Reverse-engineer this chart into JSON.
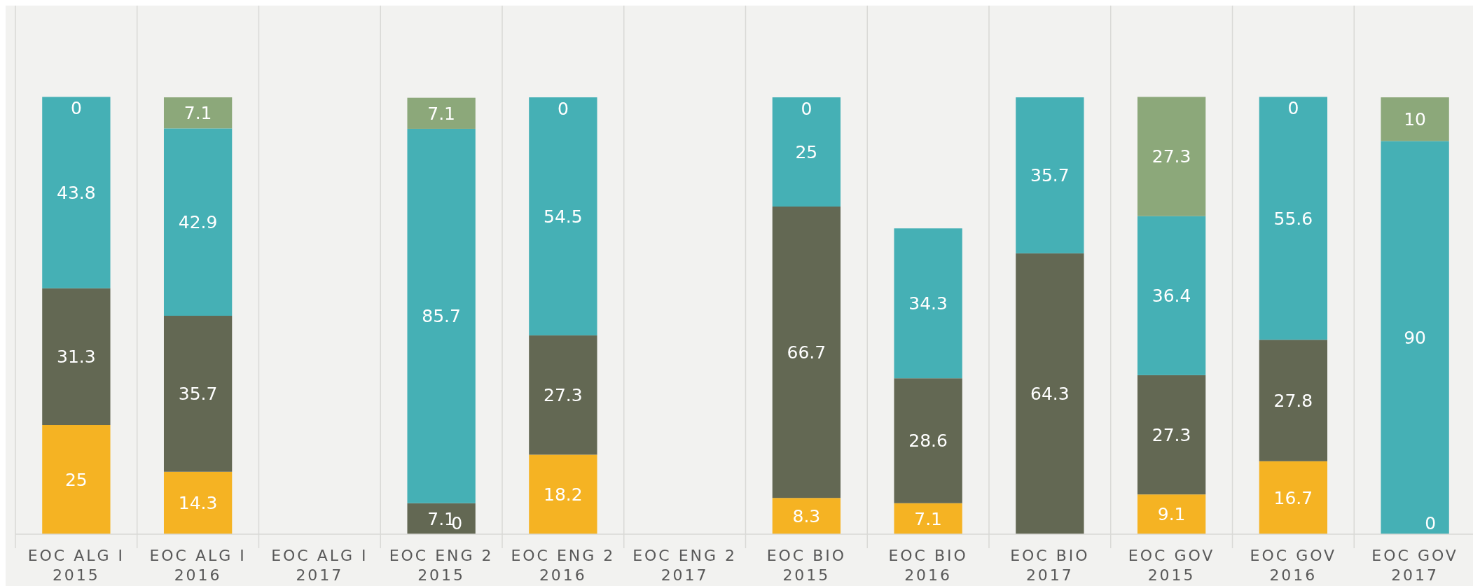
{
  "chart_data": {
    "type": "bar",
    "stacked": true,
    "data_labels": true,
    "grid": "x",
    "legend": false,
    "tick_labels": "x",
    "ylim": [
      0,
      121
    ],
    "annotations": [
      {
        "text": "0",
        "x": "EOC ENG 2 2015",
        "y": 0
      },
      {
        "text": "0",
        "x": "EOC GOV 2017",
        "y": 0
      }
    ],
    "categories": [
      "EOC ALG I 2015",
      "EOC ALG I 2016",
      "EOC ALG I 2017",
      "EOC ENG 2 2015",
      "EOC ENG 2 2016",
      "EOC ENG 2 2017",
      "EOC BIO 2015",
      "EOC BIO 2016",
      "EOC BIO 2017",
      "EOC GOV 2015",
      "EOC GOV 2016",
      "EOC GOV 2017"
    ],
    "series": [
      {
        "color": "#f5b323",
        "values": [
          25,
          14.3,
          null,
          null,
          18.2,
          null,
          8.3,
          7.1,
          null,
          9.1,
          16.7,
          null
        ]
      },
      {
        "color": "#636853",
        "values": [
          31.3,
          35.7,
          null,
          7.1,
          27.3,
          null,
          66.7,
          28.6,
          64.3,
          27.3,
          27.8,
          null
        ]
      },
      {
        "color": "#45b0b5",
        "values": [
          43.8,
          42.9,
          null,
          85.7,
          54.5,
          null,
          25,
          34.3,
          35.7,
          36.4,
          55.6,
          90
        ]
      },
      {
        "color": "#8ca87a",
        "values": [
          0,
          7.1,
          null,
          7.1,
          0,
          null,
          0,
          null,
          null,
          27.3,
          0,
          10
        ]
      }
    ]
  }
}
